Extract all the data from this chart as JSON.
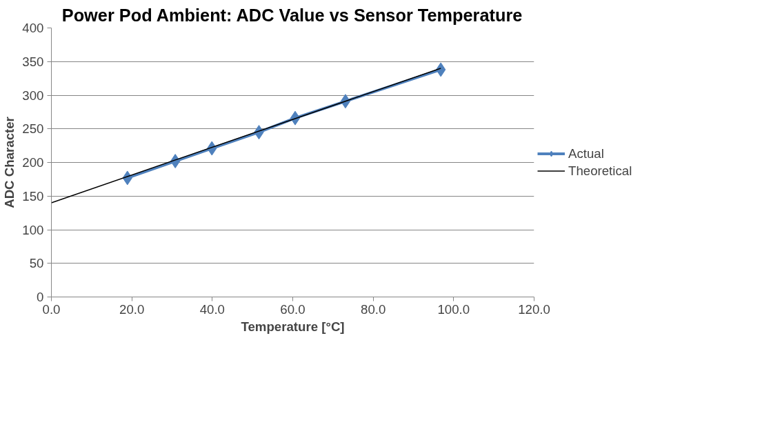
{
  "chart_data": {
    "type": "line",
    "title": "Power Pod Ambient: ADC Value vs Sensor Temperature",
    "xlabel": "Temperature [°C]",
    "ylabel": "ADC Character",
    "xlim": [
      0,
      120
    ],
    "ylim": [
      0,
      400
    ],
    "xticks": [
      {
        "value": 0,
        "label": "0.0"
      },
      {
        "value": 20,
        "label": "20.0"
      },
      {
        "value": 40,
        "label": "40.0"
      },
      {
        "value": 60,
        "label": "60.0"
      },
      {
        "value": 80,
        "label": "80.0"
      },
      {
        "value": 100,
        "label": "100.0"
      },
      {
        "value": 120,
        "label": "120.0"
      }
    ],
    "yticks": [
      0,
      50,
      100,
      150,
      200,
      250,
      300,
      350,
      400
    ],
    "grid": "y",
    "legend": "right",
    "series": [
      {
        "name": "Actual",
        "color": "#4f81bd",
        "marker": "diamond",
        "x": [
          18.9,
          30.8,
          39.9,
          51.6,
          60.6,
          73.1,
          96.8
        ],
        "values": [
          177,
          202,
          221,
          245,
          266,
          291,
          338
        ]
      },
      {
        "name": "Theoretical",
        "color": "#000000",
        "marker": "none",
        "x": [
          0,
          96.8
        ],
        "values": [
          140,
          340
        ]
      }
    ]
  }
}
